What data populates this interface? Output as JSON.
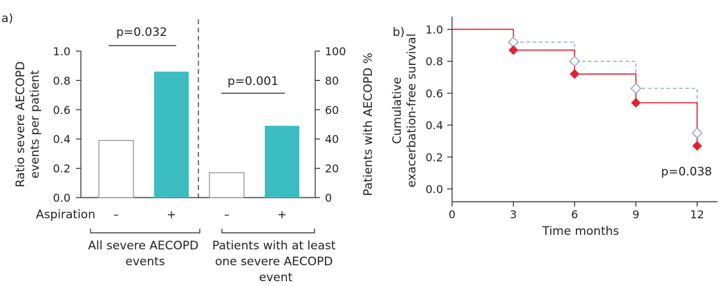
{
  "chart_data": [
    {
      "panel_label": "a)",
      "type": "bar",
      "subplots": [
        {
          "group_label": "All severe AECOPD events",
          "categories": [
            "–",
            "+"
          ],
          "values": [
            0.39,
            0.86
          ],
          "ylim": [
            0,
            1.0
          ],
          "yticks": [
            "0.0",
            "0.2",
            "0.4",
            "0.6",
            "0.8",
            "1.0"
          ],
          "ylabel": "Ratio severe AECOPD events per patient",
          "significance": "p=0.032"
        },
        {
          "group_label": "Patients with at least one severe AECOPD event",
          "categories": [
            "–",
            "+"
          ],
          "values": [
            17,
            49
          ],
          "ylim": [
            0,
            100
          ],
          "yticks": [
            "0",
            "20",
            "40",
            "60",
            "80",
            "100"
          ],
          "ylabel": "Patients with AECOPD %",
          "significance": "p=0.001"
        }
      ],
      "xaxis_title": "Aspiration",
      "colors": {
        "negative": "#ffffff",
        "positive": "#3bbcc0"
      }
    },
    {
      "panel_label": "b)",
      "type": "line",
      "step": true,
      "xlabel": "Time months",
      "ylabel_lines": [
        "Cumulative",
        "exacerbation-free survival"
      ],
      "xticks": [
        "0",
        "3",
        "6",
        "9",
        "12"
      ],
      "yticks": [
        "0.0",
        "0.2",
        "0.4",
        "0.6",
        "0.8",
        "1.0"
      ],
      "xlim": [
        0,
        13
      ],
      "ylim": [
        -0.08,
        1.08
      ],
      "series": [
        {
          "x": [
            0,
            3,
            6,
            9,
            12
          ],
          "y": [
            1.0,
            0.87,
            0.72,
            0.54,
            0.27
          ],
          "color": "#e4202f",
          "marker": "filled-diamond",
          "dashed": false
        },
        {
          "x": [
            0,
            3,
            6,
            9,
            12
          ],
          "y": [
            1.0,
            0.92,
            0.8,
            0.63,
            0.35
          ],
          "color": "#8d9fc8",
          "marker": "open-diamond",
          "dashed": true
        }
      ],
      "annotation": "p=0.038"
    }
  ]
}
